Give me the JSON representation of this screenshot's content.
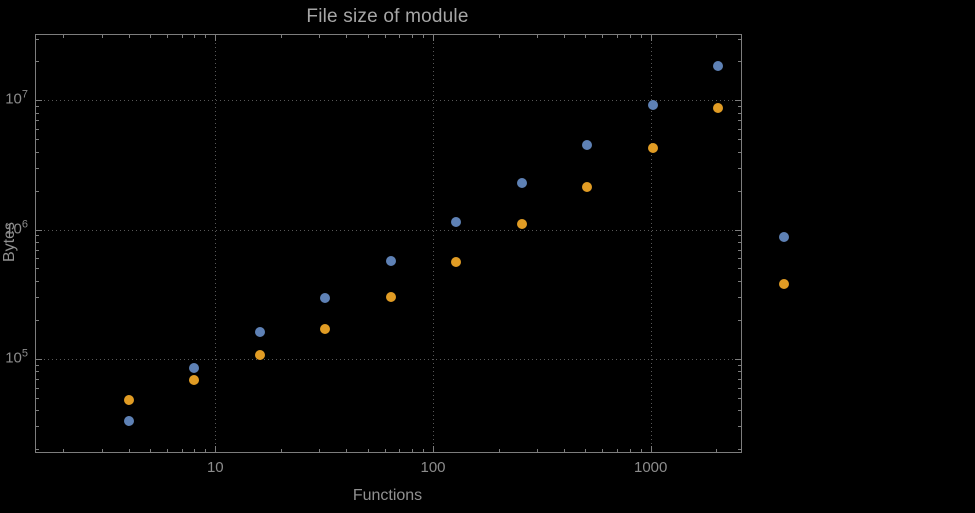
{
  "chart_data": {
    "type": "scatter",
    "title": "File size of module",
    "xlabel": "Functions",
    "ylabel": "Bytes",
    "xscale": "log",
    "yscale": "log",
    "grid": true,
    "legend": "none",
    "xlim": [
      1.5,
      2600
    ],
    "ylim": [
      19000,
      32000000
    ],
    "x_major_ticks": [
      10,
      100,
      1000
    ],
    "x_tick_labels": [
      "10",
      "100",
      "1000"
    ],
    "y_major_ticks": [
      100000,
      1000000,
      10000000
    ],
    "y_tick_labels": [
      {
        "base": "10",
        "exp": "5"
      },
      {
        "base": "10",
        "exp": "6"
      },
      {
        "base": "10",
        "exp": "7"
      }
    ],
    "series": [
      {
        "name": "series-1-blue",
        "color": "#5e81b5",
        "points": [
          [
            4,
            33000
          ],
          [
            8,
            85000
          ],
          [
            16,
            160000
          ],
          [
            32,
            295000
          ],
          [
            64,
            570000
          ],
          [
            128,
            1150000
          ],
          [
            256,
            2300000
          ],
          [
            512,
            4500000
          ],
          [
            1024,
            9200000
          ],
          [
            2048,
            18500000
          ],
          [
            4096,
            880000
          ]
        ]
      },
      {
        "name": "series-2-orange",
        "color": "#e19c24",
        "points": [
          [
            4,
            48000
          ],
          [
            8,
            68000
          ],
          [
            16,
            107000
          ],
          [
            32,
            170000
          ],
          [
            64,
            300000
          ],
          [
            128,
            560000
          ],
          [
            256,
            1100000
          ],
          [
            512,
            2150000
          ],
          [
            1024,
            4300000
          ],
          [
            2048,
            8800000
          ],
          [
            4096,
            380000
          ]
        ]
      }
    ],
    "colors": {
      "background": "#000000",
      "frame": "#7d7d7d",
      "grid": "#585858",
      "title_text": "#a6a6a6",
      "axis_label_text": "#909090",
      "tick_label_text": "#8c8c8c"
    }
  }
}
